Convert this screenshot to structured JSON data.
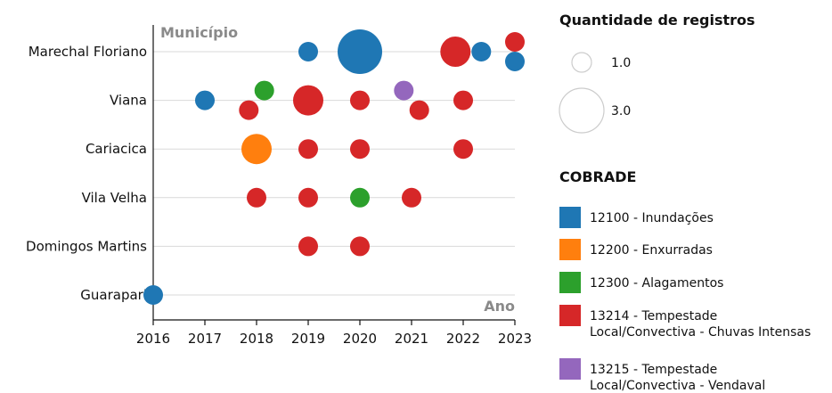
{
  "chart_data": {
    "type": "scatter",
    "title": "",
    "xlabel": "Ano",
    "ylabel": "Município",
    "categories": [
      "Marechal Floriano",
      "Viana",
      "Cariacica",
      "Vila Velha",
      "Domingos Martins",
      "Guarapari"
    ],
    "x_ticks": [
      "2016",
      "2017",
      "2018",
      "2019",
      "2020",
      "2021",
      "2022",
      "2023"
    ],
    "xlim": [
      2016,
      2023
    ],
    "grid": "horizontal",
    "size_legend": {
      "title": "Quantidade de registros",
      "entries": [
        {
          "label": "1.0",
          "value": 1
        },
        {
          "label": "3.0",
          "value": 3
        }
      ]
    },
    "color_legend": {
      "title": "COBRADE",
      "entries": [
        {
          "code": "12100",
          "label": "12100 - Inundações",
          "color": "#1f77b4"
        },
        {
          "code": "12200",
          "label": "12200 - Enxurradas",
          "color": "#ff7f0e"
        },
        {
          "code": "12300",
          "label": "12300 - Alagamentos",
          "color": "#2ca02c"
        },
        {
          "code": "13214",
          "label": [
            "13214 - Tempestade",
            "Local/Convectiva - Chuvas Intensas"
          ],
          "color": "#d62728"
        },
        {
          "code": "13215",
          "label": [
            "13215 - Tempestade",
            "Local/Convectiva - Vendaval"
          ],
          "color": "#9467bd"
        }
      ]
    },
    "points": [
      {
        "municipio": "Marechal Floriano",
        "x": 2019.0,
        "count": 1,
        "cobrade": "12100"
      },
      {
        "municipio": "Marechal Floriano",
        "x": 2020.0,
        "count": 3,
        "cobrade": "12100"
      },
      {
        "municipio": "Marechal Floriano",
        "x": 2021.85,
        "count": 2,
        "cobrade": "13214"
      },
      {
        "municipio": "Marechal Floriano",
        "x": 2022.35,
        "count": 1,
        "cobrade": "12100"
      },
      {
        "municipio": "Marechal Floriano",
        "x": 2023.0,
        "count": 1,
        "cobrade": "13214",
        "offset": "up"
      },
      {
        "municipio": "Marechal Floriano",
        "x": 2023.0,
        "count": 1,
        "cobrade": "12100",
        "offset": "down"
      },
      {
        "municipio": "Viana",
        "x": 2017.0,
        "count": 1,
        "cobrade": "12100"
      },
      {
        "municipio": "Viana",
        "x": 2017.85,
        "count": 1,
        "cobrade": "13214",
        "offset": "down"
      },
      {
        "municipio": "Viana",
        "x": 2018.15,
        "count": 1,
        "cobrade": "12300",
        "offset": "up"
      },
      {
        "municipio": "Viana",
        "x": 2019.0,
        "count": 2,
        "cobrade": "13214"
      },
      {
        "municipio": "Viana",
        "x": 2020.0,
        "count": 1,
        "cobrade": "13214"
      },
      {
        "municipio": "Viana",
        "x": 2020.85,
        "count": 1,
        "cobrade": "13215",
        "offset": "up"
      },
      {
        "municipio": "Viana",
        "x": 2021.15,
        "count": 1,
        "cobrade": "13214",
        "offset": "down"
      },
      {
        "municipio": "Viana",
        "x": 2022.0,
        "count": 1,
        "cobrade": "13214"
      },
      {
        "municipio": "Cariacica",
        "x": 2018.0,
        "count": 2,
        "cobrade": "12200"
      },
      {
        "municipio": "Cariacica",
        "x": 2019.0,
        "count": 1,
        "cobrade": "13214"
      },
      {
        "municipio": "Cariacica",
        "x": 2020.0,
        "count": 1,
        "cobrade": "13214"
      },
      {
        "municipio": "Cariacica",
        "x": 2022.0,
        "count": 1,
        "cobrade": "13214"
      },
      {
        "municipio": "Vila Velha",
        "x": 2018.0,
        "count": 1,
        "cobrade": "13214"
      },
      {
        "municipio": "Vila Velha",
        "x": 2019.0,
        "count": 1,
        "cobrade": "13214"
      },
      {
        "municipio": "Vila Velha",
        "x": 2020.0,
        "count": 1,
        "cobrade": "12300"
      },
      {
        "municipio": "Vila Velha",
        "x": 2021.0,
        "count": 1,
        "cobrade": "13214"
      },
      {
        "municipio": "Domingos Martins",
        "x": 2019.0,
        "count": 1,
        "cobrade": "13214"
      },
      {
        "municipio": "Domingos Martins",
        "x": 2020.0,
        "count": 1,
        "cobrade": "13214"
      },
      {
        "municipio": "Guarapari",
        "x": 2016.0,
        "count": 1,
        "cobrade": "12100"
      }
    ]
  }
}
